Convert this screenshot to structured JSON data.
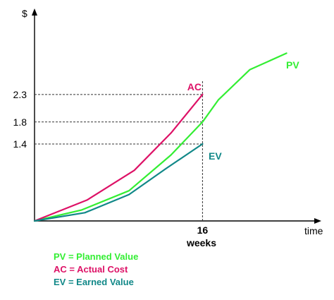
{
  "chart_data": {
    "type": "line",
    "ylabel": "$",
    "xlabel": "time",
    "xunit": "weeks",
    "xlim": [
      0,
      28.5
    ],
    "ylim": [
      0,
      4.0
    ],
    "ticks": {
      "x": [
        {
          "value": 16,
          "label": "16"
        }
      ],
      "y": [
        {
          "value": 2.3,
          "label": "2.3"
        },
        {
          "value": 1.8,
          "label": "1.8"
        },
        {
          "value": 1.4,
          "label": "1.4"
        }
      ]
    },
    "status_week": 16,
    "series": [
      {
        "name": "PV",
        "color": "#33ee33",
        "x": [
          0,
          4.5,
          9,
          13,
          16,
          17.5,
          20.5,
          24
        ],
        "y": [
          0,
          0.2,
          0.55,
          1.2,
          1.8,
          2.2,
          2.75,
          3.05
        ]
      },
      {
        "name": "AC",
        "color": "#dd1166",
        "x": [
          0,
          5,
          9.5,
          13,
          16
        ],
        "y": [
          0,
          0.38,
          0.92,
          1.6,
          2.3
        ]
      },
      {
        "name": "EV",
        "color": "#118888",
        "x": [
          0,
          4.8,
          9,
          12.5,
          16
        ],
        "y": [
          0,
          0.15,
          0.48,
          0.95,
          1.4
        ]
      }
    ],
    "legend": {
      "placement": "bottom-left",
      "items": [
        {
          "text": "PV = Planned Value",
          "color": "#33ee33"
        },
        {
          "text": "AC = Actual Cost",
          "color": "#dd1166"
        },
        {
          "text": "EV = Earned Value",
          "color": "#118888"
        }
      ]
    },
    "grid": false
  }
}
